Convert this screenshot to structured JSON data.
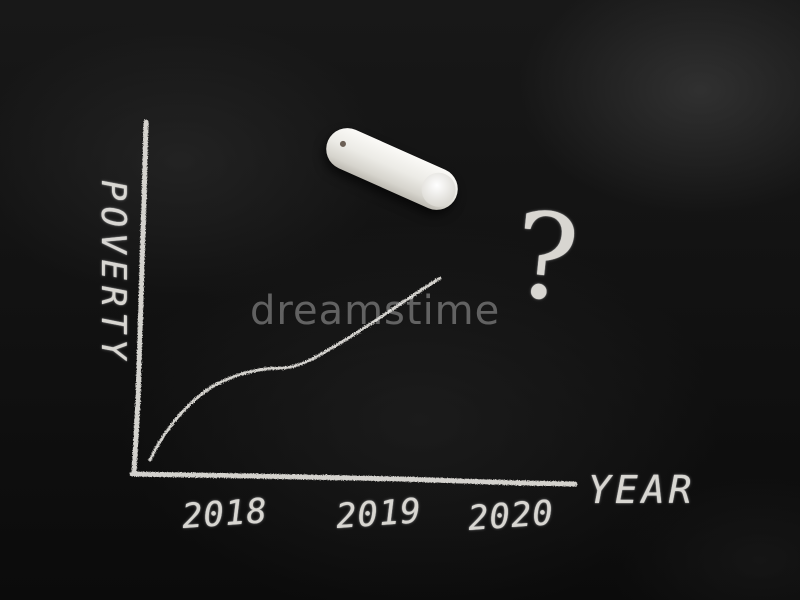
{
  "drawing": {
    "axis_label_y": "POVERTY",
    "axis_label_x": "YEAR",
    "year_labels": [
      "2018",
      "2019",
      "2020"
    ],
    "question_mark": "?"
  },
  "watermark": {
    "text": "dreamstime"
  },
  "colors": {
    "chalkboard": "#111111",
    "chalk": "#e9e7e2"
  }
}
